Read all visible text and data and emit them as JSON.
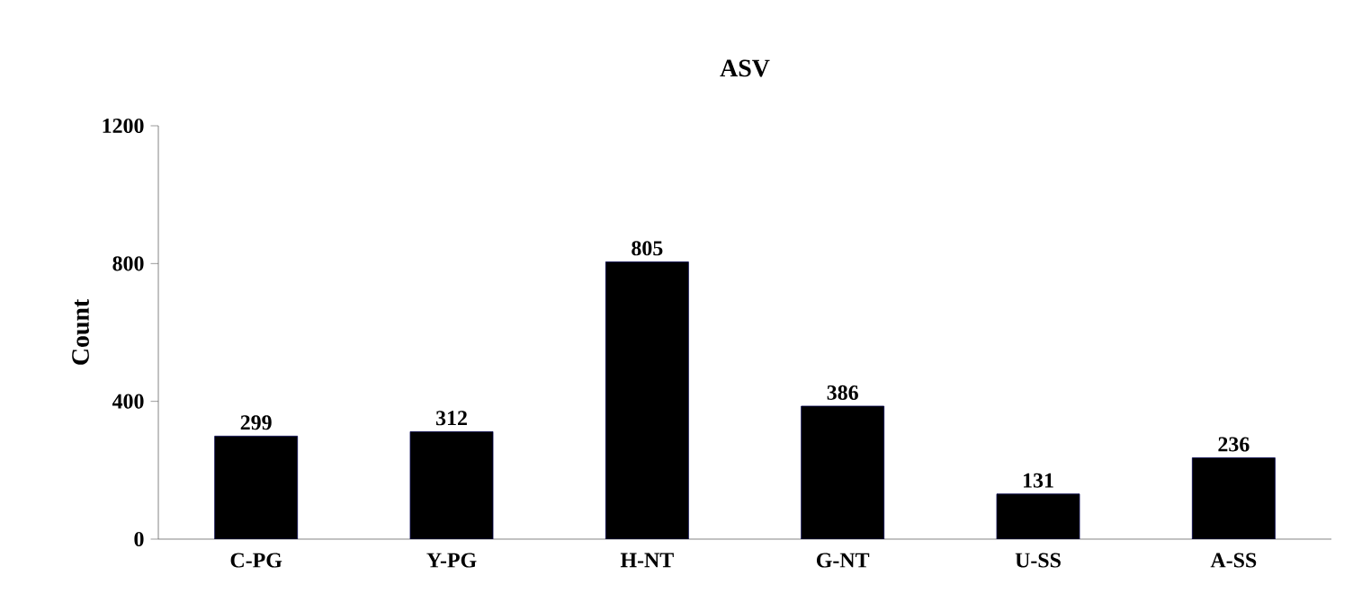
{
  "chart_data": {
    "type": "bar",
    "title": "ASV",
    "ylabel": "Count",
    "categories": [
      "C-PG",
      "Y-PG",
      "H-NT",
      "G-NT",
      "U-SS",
      "A-SS"
    ],
    "values": [
      299,
      312,
      805,
      386,
      131,
      236
    ],
    "color": "#000000",
    "ylim": [
      0,
      1200
    ],
    "yticks": [
      0,
      400,
      800,
      1200
    ],
    "data_labels": true
  }
}
